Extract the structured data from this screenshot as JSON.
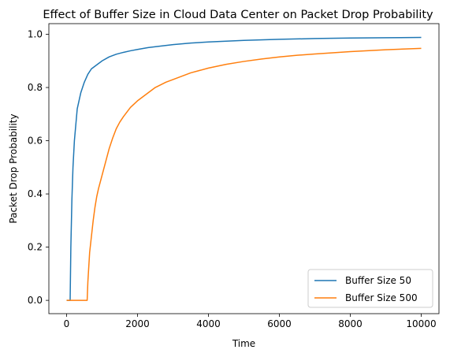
{
  "chart_data": {
    "type": "line",
    "title": "Effect of Buffer Size in Cloud Data Center on Packet Drop Probability",
    "xlabel": "Time",
    "ylabel": "Packet Drop Probability",
    "xlim": [
      -500,
      10500
    ],
    "ylim": [
      -0.05,
      1.04
    ],
    "xticks": [
      0,
      2000,
      4000,
      6000,
      8000,
      10000
    ],
    "xtick_labels": [
      "0",
      "2000",
      "4000",
      "6000",
      "8000",
      "10000"
    ],
    "yticks": [
      0.0,
      0.2,
      0.4,
      0.6,
      0.8,
      1.0
    ],
    "ytick_labels": [
      "0.0",
      "0.2",
      "0.4",
      "0.6",
      "0.8",
      "1.0"
    ],
    "grid": false,
    "legend_position": "bottom-right",
    "series": [
      {
        "name": "Buffer Size 50",
        "color": "#1f77b4",
        "x": [
          0,
          100,
          120,
          150,
          180,
          220,
          260,
          300,
          350,
          400,
          450,
          500,
          600,
          700,
          800,
          900,
          1000,
          1200,
          1400,
          1600,
          1800,
          2000,
          2300,
          2600,
          3000,
          3500,
          4000,
          4500,
          5000,
          6000,
          7000,
          8000,
          9000,
          10000
        ],
        "y": [
          0.0,
          0.0,
          0.2,
          0.38,
          0.5,
          0.6,
          0.66,
          0.72,
          0.75,
          0.78,
          0.8,
          0.82,
          0.85,
          0.87,
          0.88,
          0.89,
          0.9,
          0.915,
          0.925,
          0.932,
          0.938,
          0.943,
          0.95,
          0.955,
          0.961,
          0.967,
          0.971,
          0.974,
          0.977,
          0.981,
          0.984,
          0.986,
          0.987,
          0.988
        ]
      },
      {
        "name": "Buffer Size 500",
        "color": "#ff7f0e",
        "x": [
          0,
          580,
          600,
          650,
          700,
          750,
          800,
          850,
          900,
          1000,
          1100,
          1200,
          1300,
          1400,
          1500,
          1600,
          1800,
          2000,
          2200,
          2500,
          2800,
          3000,
          3500,
          4000,
          4500,
          5000,
          5500,
          6000,
          6500,
          7000,
          8000,
          9000,
          10000
        ],
        "y": [
          0.0,
          0.0,
          0.07,
          0.18,
          0.24,
          0.3,
          0.35,
          0.39,
          0.42,
          0.47,
          0.52,
          0.57,
          0.61,
          0.645,
          0.67,
          0.69,
          0.725,
          0.75,
          0.77,
          0.8,
          0.82,
          0.83,
          0.855,
          0.873,
          0.887,
          0.898,
          0.907,
          0.915,
          0.921,
          0.926,
          0.935,
          0.942,
          0.947
        ]
      }
    ]
  }
}
